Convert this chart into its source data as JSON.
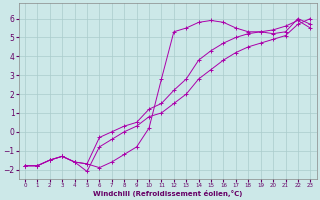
{
  "xlabel": "Windchill (Refroidissement éolien,°C)",
  "bg_color": "#cce8e8",
  "grid_color": "#aacccc",
  "line_color": "#aa00aa",
  "xlim": [
    -0.5,
    23.5
  ],
  "ylim": [
    -2.5,
    6.8
  ],
  "xticks": [
    0,
    1,
    2,
    3,
    4,
    5,
    6,
    7,
    8,
    9,
    10,
    11,
    12,
    13,
    14,
    15,
    16,
    17,
    18,
    19,
    20,
    21,
    22,
    23
  ],
  "yticks": [
    -2,
    -1,
    0,
    1,
    2,
    3,
    4,
    5,
    6
  ],
  "series": [
    {
      "x": [
        0,
        1,
        2,
        3,
        4,
        5,
        6,
        7,
        8,
        9,
        10,
        11,
        12,
        13,
        14,
        15,
        16,
        17,
        18,
        19,
        20,
        21,
        22,
        23
      ],
      "y": [
        -1.8,
        -1.8,
        -1.5,
        -1.3,
        -1.6,
        -1.7,
        -1.9,
        -1.6,
        -1.2,
        -0.8,
        0.2,
        2.8,
        5.3,
        5.5,
        5.8,
        5.9,
        5.8,
        5.5,
        5.3,
        5.3,
        5.2,
        5.3,
        6.0,
        5.7
      ]
    },
    {
      "x": [
        0,
        1,
        2,
        3,
        4,
        5,
        6,
        7,
        8,
        9,
        10,
        11,
        12,
        13,
        14,
        15,
        16,
        17,
        18,
        19,
        20,
        21,
        22,
        23
      ],
      "y": [
        -1.8,
        -1.8,
        -1.5,
        -1.3,
        -1.6,
        -2.1,
        -0.8,
        -0.4,
        0.0,
        0.3,
        0.8,
        1.0,
        1.5,
        2.0,
        2.8,
        3.3,
        3.8,
        4.2,
        4.5,
        4.7,
        4.9,
        5.1,
        5.7,
        6.0
      ]
    },
    {
      "x": [
        0,
        1,
        2,
        3,
        4,
        5,
        6,
        7,
        8,
        9,
        10,
        11,
        12,
        13,
        14,
        15,
        16,
        17,
        18,
        19,
        20,
        21,
        22,
        23
      ],
      "y": [
        -1.8,
        -1.8,
        -1.5,
        -1.3,
        -1.6,
        -1.7,
        -0.3,
        0.0,
        0.3,
        0.5,
        1.2,
        1.5,
        2.2,
        2.8,
        3.8,
        4.3,
        4.7,
        5.0,
        5.2,
        5.3,
        5.4,
        5.6,
        5.9,
        5.5
      ]
    }
  ]
}
